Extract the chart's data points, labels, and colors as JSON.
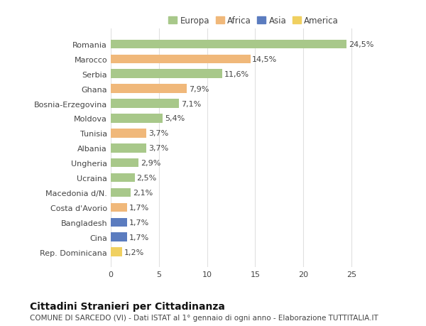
{
  "title": "Cittadini Stranieri per Cittadinanza",
  "subtitle": "COMUNE DI SARCEDO (VI) - Dati ISTAT al 1° gennaio di ogni anno - Elaborazione TUTTITALIA.IT",
  "legend_labels": [
    "Europa",
    "Africa",
    "Asia",
    "America"
  ],
  "legend_colors": [
    "#a8c88a",
    "#f0b87a",
    "#5b7cbf",
    "#f0d060"
  ],
  "categories": [
    "Romania",
    "Marocco",
    "Serbia",
    "Ghana",
    "Bosnia-Erzegovina",
    "Moldova",
    "Tunisia",
    "Albania",
    "Ungheria",
    "Ucraina",
    "Macedonia d/N.",
    "Costa d'Avorio",
    "Bangladesh",
    "Cina",
    "Rep. Dominicana"
  ],
  "values": [
    24.5,
    14.5,
    11.6,
    7.9,
    7.1,
    5.4,
    3.7,
    3.7,
    2.9,
    2.5,
    2.1,
    1.7,
    1.7,
    1.7,
    1.2
  ],
  "labels": [
    "24,5%",
    "14,5%",
    "11,6%",
    "7,9%",
    "7,1%",
    "5,4%",
    "3,7%",
    "3,7%",
    "2,9%",
    "2,5%",
    "2,1%",
    "1,7%",
    "1,7%",
    "1,7%",
    "1,2%"
  ],
  "bar_colors": [
    "#a8c88a",
    "#f0b87a",
    "#a8c88a",
    "#f0b87a",
    "#a8c88a",
    "#a8c88a",
    "#f0b87a",
    "#a8c88a",
    "#a8c88a",
    "#a8c88a",
    "#a8c88a",
    "#f0b87a",
    "#5b7cbf",
    "#5b7cbf",
    "#f0d060"
  ],
  "xlim": [
    0,
    27
  ],
  "background_color": "#ffffff",
  "grid_color": "#e0e0e0",
  "bar_height": 0.6,
  "label_fontsize": 8,
  "tick_fontsize": 8,
  "title_fontsize": 10,
  "subtitle_fontsize": 7.5,
  "legend_fontsize": 8.5
}
